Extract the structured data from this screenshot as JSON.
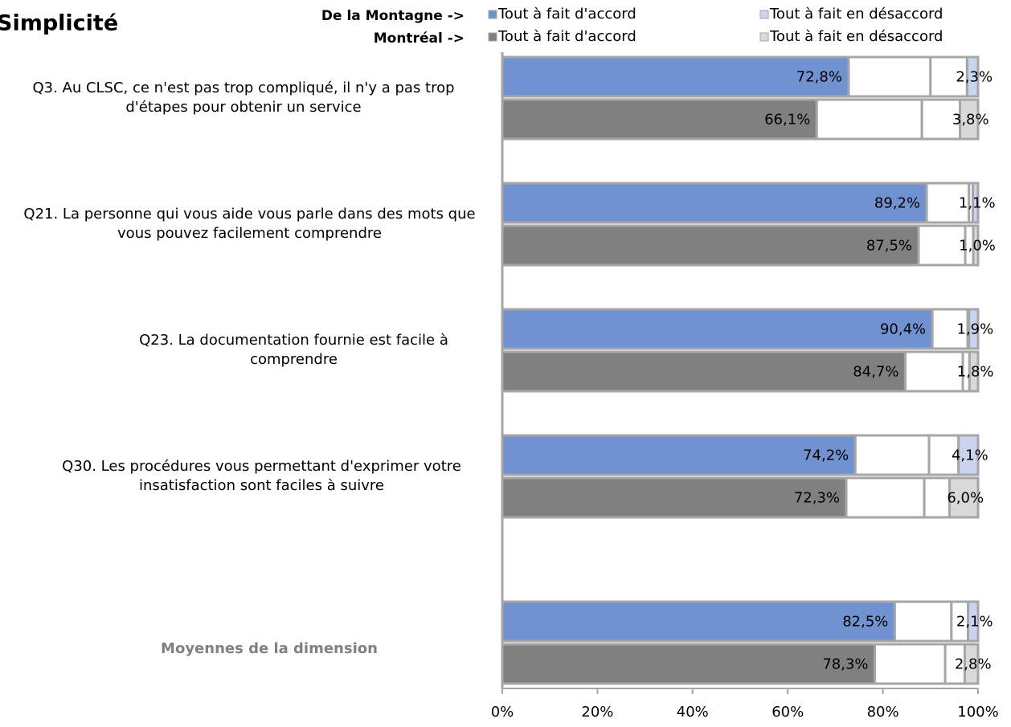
{
  "chart_data": {
    "type": "bar",
    "orientation": "horizontal",
    "stacked": true,
    "title": "Simplicité",
    "categories": [
      "Q3.  Au CLSC, ce n'est pas trop compliqué, il n'y a pas trop d'étapes pour obtenir un service",
      "Q21.  La personne qui vous aide vous parle dans des mots que vous pouvez facilement comprendre",
      "Q23.  La documentation fournie est facile à comprendre",
      "Q30.  Les procédures vous permettant d'exprimer votre insatisfaction sont faciles à suivre",
      "Moyennes de la dimension"
    ],
    "groups": [
      {
        "label": "De la Montagne ->",
        "color": "#7092d0",
        "series": [
          {
            "name": "Tout à fait d'accord",
            "color": "#7092d0",
            "values": [
              72.8,
              89.2,
              90.4,
              74.2,
              82.5
            ],
            "value_labels": [
              "72,8%",
              "89,2%",
              "90,4%",
              "74,2%",
              "82,5%"
            ]
          },
          {
            "color": "#ffffff",
            "values": [
              17.2,
              8.9,
              7.4,
              15.5,
              11.9
            ]
          },
          {
            "color": "#ffffff",
            "values": [
              7.7,
              0.8,
              0.3,
              6.2,
              3.5
            ]
          },
          {
            "name": "Tout à fait en désaccord",
            "color": "#c8d4f0",
            "values": [
              2.3,
              1.1,
              1.9,
              4.1,
              2.1
            ],
            "value_labels": [
              "2,3%",
              "1,1%",
              "1,9%",
              "4,1%",
              "2,1%"
            ]
          }
        ]
      },
      {
        "label": "Montréal ->",
        "color": "#808080",
        "series": [
          {
            "name": "Tout à fait d'accord",
            "color": "#808080",
            "values": [
              66.1,
              87.5,
              84.7,
              72.3,
              78.3
            ],
            "value_labels": [
              "66,1%",
              "87,5%",
              "84,7%",
              "72,3%",
              "78,3%"
            ]
          },
          {
            "color": "#ffffff",
            "values": [
              22.1,
              9.8,
              12.1,
              16.4,
              14.8
            ]
          },
          {
            "color": "#ffffff",
            "values": [
              8.0,
              1.7,
              1.4,
              5.3,
              4.1
            ]
          },
          {
            "name": "Tout à fait en désaccord",
            "color": "#d9d9d9",
            "values": [
              3.8,
              1.0,
              1.8,
              6.0,
              2.8
            ],
            "value_labels": [
              "3,8%",
              "1,0%",
              "1,8%",
              "6,0%",
              "2,8%"
            ]
          }
        ]
      }
    ],
    "xlim": [
      0,
      100
    ],
    "xticks": [
      {
        "value": 0,
        "label": "0%"
      },
      {
        "value": 20,
        "label": "20%"
      },
      {
        "value": 40,
        "label": "40%"
      },
      {
        "value": 60,
        "label": "60%"
      },
      {
        "value": 80,
        "label": "80%"
      },
      {
        "value": 100,
        "label": "100%"
      }
    ]
  }
}
